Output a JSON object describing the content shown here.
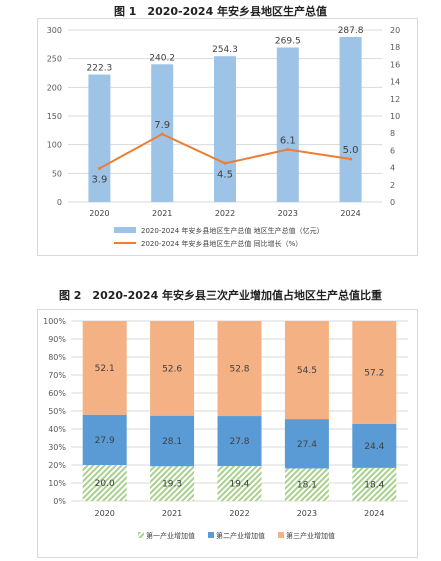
{
  "chart_data": [
    {
      "type": "bar+line",
      "title": "图 1　2020-2024 年安乡县地区生产总值",
      "categories": [
        "2020",
        "2021",
        "2022",
        "2023",
        "2024"
      ],
      "series": [
        {
          "name": "2020-2024 年安乡县地区生产总值 地区生产总值（亿元）",
          "type": "bar",
          "axis": "left",
          "values": [
            222.3,
            240.2,
            254.3,
            269.5,
            287.8
          ],
          "color": "#9dc3e6"
        },
        {
          "name": "2020-2024 年安乡县地区生产总值 同比增长（%）",
          "type": "line",
          "axis": "right",
          "values": [
            3.9,
            7.9,
            4.5,
            6.1,
            5.0
          ],
          "color": "#ed7d31"
        }
      ],
      "ylim_left": [
        0,
        300
      ],
      "yticks_left": [
        "0",
        "50",
        "100",
        "150",
        "200",
        "250",
        "300"
      ],
      "ylim_right": [
        0,
        20
      ],
      "yticks_right": [
        "0",
        "2",
        "4",
        "6",
        "8",
        "10",
        "12",
        "14",
        "16",
        "18",
        "20"
      ],
      "grid": true,
      "legend_position": "bottom"
    },
    {
      "type": "stacked-bar-100",
      "title": "图 2　2020-2024 年安乡县三次产业增加值占地区生产总值比重",
      "categories": [
        "2020",
        "2021",
        "2022",
        "2023",
        "2024"
      ],
      "series": [
        {
          "name": "第一产业增加值",
          "values": [
            20.0,
            19.3,
            19.4,
            18.1,
            18.4
          ],
          "color": "#a9d18e",
          "pattern": "hatch"
        },
        {
          "name": "第二产业增加值",
          "values": [
            27.9,
            28.1,
            27.8,
            27.4,
            24.4
          ],
          "color": "#5b9bd5"
        },
        {
          "name": "第三产业增加值",
          "values": [
            52.1,
            52.6,
            52.8,
            54.5,
            57.2
          ],
          "color": "#f4b183"
        }
      ],
      "ylim": [
        0,
        100
      ],
      "yticks": [
        "0%",
        "10%",
        "20%",
        "30%",
        "40%",
        "50%",
        "60%",
        "70%",
        "80%",
        "90%",
        "100%"
      ],
      "grid": true,
      "legend_position": "bottom"
    }
  ]
}
